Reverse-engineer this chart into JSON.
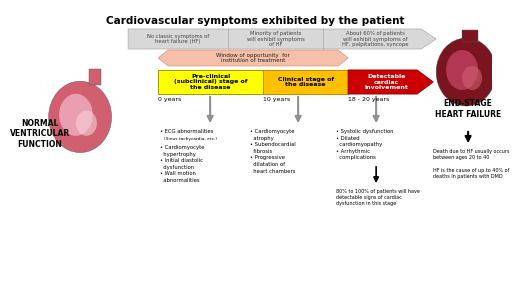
{
  "title": "Cardiovascular symptoms exhibited by the patient",
  "bg_color": "#ffffff",
  "top_box1_text": "No classic symptoms of\nheart failure (HF)",
  "top_box2_text": "Minority of patients\nwill exhibit symptoms\nof HF",
  "top_box3_text": "About 60% of patients\nwill exhibit symptoms of\nHF, palpitations, syncope",
  "window_text": "Window of opportunity  for\ninstitution of treatment",
  "window_color": "#f5b8a0",
  "stage1_text": "Pre-clinical\n(subclinical) stage of\nthe disease",
  "stage1_color": "#ffff00",
  "stage2_text": "Clinical stage of\nthe disease",
  "stage2_color": "#ffc000",
  "stage3_text": "Detectable\ncardiac\ninvolvement",
  "stage3_color": "#cc0000",
  "time_labels": [
    "0 years",
    "10 years",
    "18 - 20 years"
  ],
  "left_label": "NORMAL\nVENTRICULAR\nFUNCTION",
  "right_label": "END-STAGE\nHEART FAILURE",
  "bullet1_title": "ECG abnormalities",
  "bullet1_sub": "(Sinus tachycardia, etc.)",
  "bullet1": "• Cardiomyocyte\n  hypertrophy\n• Initial diastolic\n  dysfunction\n• Wall motion\n  abnormalities",
  "bullet2": "• Cardiomyocyte\n  atrophy\n• Subendocardial\n  fibrosis\n• Progressive\n  dilatation of\n  heart chambers",
  "bullet3": "• Systolic dysfunction\n• Dilated\n  cardiomyopathy\n• Arrhythmic\n  complications",
  "note3": "80% to 100% of patients will have\ndetectable signs of cardiac\ndysfunction in this stage",
  "right_note": "Death due to HF usually occurs\nbetween ages 20 to 40\n\nHF is the cause of up to 40% of\ndeaths in patients with DMD",
  "arrow_gray": "#909090",
  "top_arrow_fill": "#d8d8d8",
  "top_arrow_edge": "#aaaaaa"
}
